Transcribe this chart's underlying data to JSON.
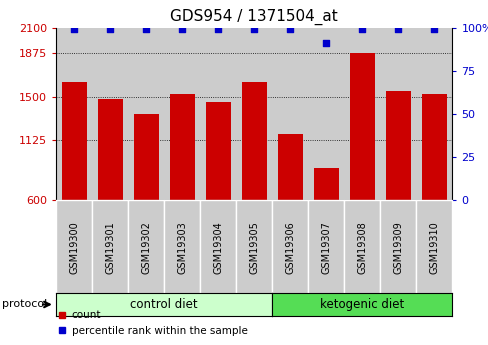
{
  "title": "GDS954 / 1371504_at",
  "samples": [
    "GSM19300",
    "GSM19301",
    "GSM19302",
    "GSM19303",
    "GSM19304",
    "GSM19305",
    "GSM19306",
    "GSM19307",
    "GSM19308",
    "GSM19309",
    "GSM19310"
  ],
  "counts": [
    1625,
    1475,
    1350,
    1525,
    1450,
    1625,
    1175,
    875,
    1875,
    1550,
    1525
  ],
  "percentile_ranks": [
    99,
    99,
    99,
    99,
    99,
    99,
    99,
    91,
    99,
    99,
    99
  ],
  "left_ylim": [
    600,
    2100
  ],
  "right_ylim": [
    0,
    100
  ],
  "left_yticks": [
    600,
    1125,
    1500,
    1875,
    2100
  ],
  "right_yticks": [
    0,
    25,
    50,
    75,
    100
  ],
  "right_yticklabels": [
    "0",
    "25",
    "50",
    "75",
    "100%"
  ],
  "bar_color": "#cc0000",
  "dot_color": "#0000cc",
  "grid_color": "#000000",
  "bg_color": "#ffffff",
  "col_bg_color": "#cccccc",
  "control_label": "control diet",
  "ketogenic_label": "ketogenic diet",
  "control_color": "#ccffcc",
  "ketogenic_color": "#55dd55",
  "protocol_label": "protocol",
  "legend_count_label": "count",
  "legend_pct_label": "percentile rank within the sample",
  "bar_width": 0.7,
  "title_fontsize": 11,
  "sample_label_fontsize": 7,
  "axis_tick_fontsize": 8,
  "left_axis_color": "#cc0000",
  "right_axis_color": "#0000cc",
  "n_control": 6,
  "n_ketogenic": 5
}
